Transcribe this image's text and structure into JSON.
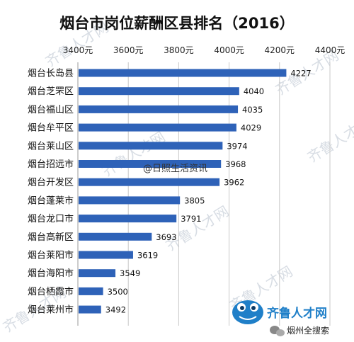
{
  "chart_data": {
    "type": "bar",
    "orientation": "horizontal",
    "title": "烟台市岗位薪酬区县排名（2016）",
    "categories": [
      "烟台长岛县",
      "烟台芝罘区",
      "烟台福山区",
      "烟台牟平区",
      "烟台莱山区",
      "烟台招远市",
      "烟台开发区",
      "烟台蓬莱市",
      "烟台龙口市",
      "烟台高新区",
      "烟台莱阳市",
      "烟台海阳市",
      "烟台栖霞市",
      "烟台莱州市"
    ],
    "values": [
      4227,
      4040,
      4035,
      4029,
      3974,
      3968,
      3962,
      3805,
      3791,
      3693,
      3619,
      3549,
      3500,
      3492
    ],
    "xlim": [
      3400,
      4400
    ],
    "xticks": [
      3400,
      3600,
      3800,
      4000,
      4200,
      4400
    ],
    "xtick_labels": [
      "3400元",
      "3600元",
      "3800元",
      "4000元",
      "4200元",
      "4400元"
    ],
    "xaxis_position": "top",
    "bar_color": "#2e62b8",
    "grid": true
  },
  "overlay": {
    "watermark_center": "@日照生活资讯",
    "logo_text": "齐鲁人才网",
    "wechat_credit": "烟州全搜索",
    "diagonal_watermark": "齐鲁人才网"
  },
  "colors": {
    "bar": "#2e62b8",
    "grid": "#c8c8c8",
    "logo": "#1f7fc8"
  }
}
